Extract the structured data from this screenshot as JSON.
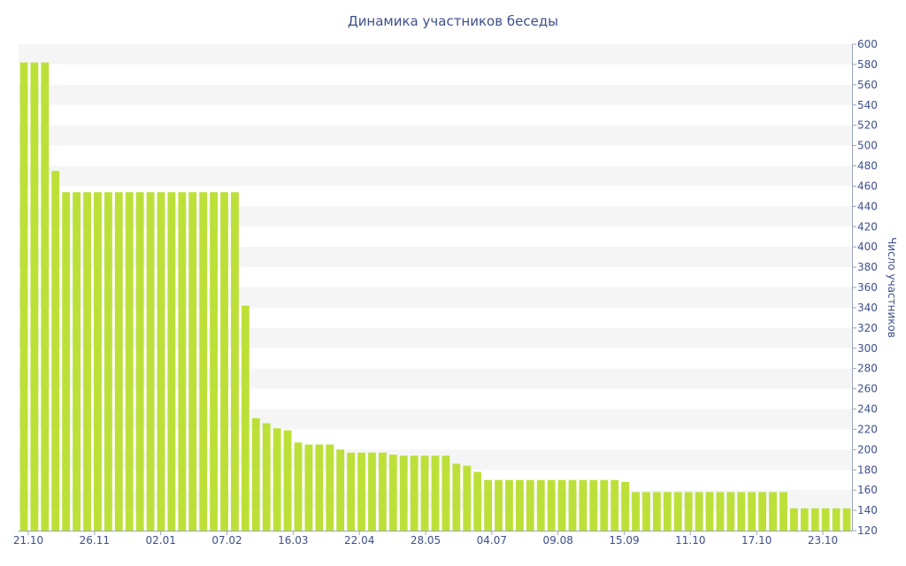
{
  "chart_data": {
    "type": "bar",
    "title": "Динамика участников беседы",
    "ylabel": "Число участников",
    "ylim": [
      120,
      600
    ],
    "y_ticks": [
      120,
      140,
      160,
      180,
      200,
      220,
      240,
      260,
      280,
      300,
      320,
      340,
      360,
      380,
      400,
      420,
      440,
      460,
      480,
      500,
      520,
      540,
      560,
      580,
      600
    ],
    "x_tick_labels": [
      "21.10",
      "26.11",
      "02.01",
      "07.02",
      "16.03",
      "22.04",
      "28.05",
      "04.07",
      "09.08",
      "15.09",
      "11.10",
      "17.10",
      "23.10"
    ],
    "values": [
      582,
      582,
      582,
      475,
      454,
      454,
      454,
      454,
      454,
      454,
      454,
      454,
      454,
      454,
      454,
      454,
      454,
      454,
      454,
      454,
      454,
      342,
      231,
      226,
      221,
      219,
      207,
      205,
      205,
      205,
      200,
      197,
      197,
      197,
      197,
      195,
      194,
      194,
      194,
      194,
      194,
      186,
      184,
      178,
      170,
      170,
      170,
      170,
      170,
      170,
      170,
      170,
      170,
      170,
      170,
      170,
      170,
      168,
      158,
      158,
      158,
      158,
      158,
      158,
      158,
      158,
      158,
      158,
      158,
      158,
      158,
      158,
      158,
      142,
      142,
      142,
      142,
      142,
      142
    ],
    "bar_color": "#bde038",
    "band_color": "#f5f5f5",
    "text_color": "#3e4f8c",
    "grid": "alternating-bands",
    "legend": "none",
    "y_axis_side": "right"
  }
}
